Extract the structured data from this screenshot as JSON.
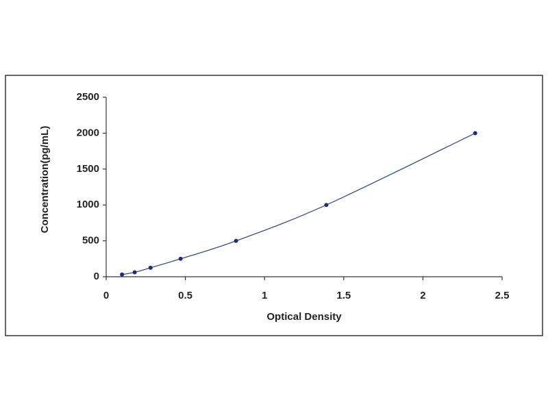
{
  "chart_data": {
    "type": "scatter",
    "x_label": "Optical Density",
    "y_label": "Concentration(pg/mL)",
    "x": [
      0.1,
      0.18,
      0.28,
      0.47,
      0.82,
      1.39,
      2.33
    ],
    "values": [
      31,
      62,
      125,
      250,
      500,
      1000,
      2000
    ],
    "color": "#1f2a80",
    "line_color": "#3b4a8a",
    "xlim": [
      0,
      2.5
    ],
    "xticks": [
      0,
      0.5,
      1,
      1.5,
      2,
      2.5
    ],
    "ylim": [
      0,
      2500
    ],
    "yticks": [
      0,
      500,
      1000,
      1500,
      2000,
      2500
    ],
    "grid": false
  }
}
